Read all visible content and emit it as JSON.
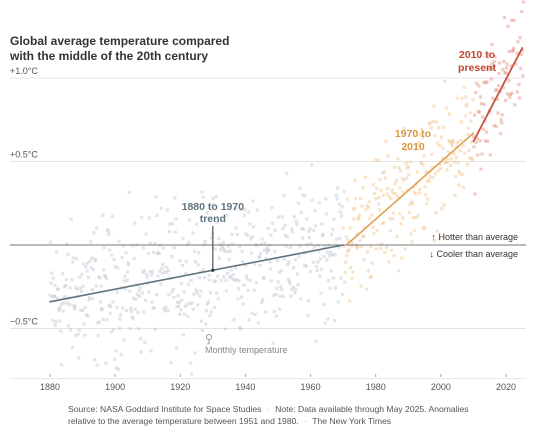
{
  "title_lines": [
    "Global average temperature compared",
    "with the middle of the 20th century"
  ],
  "source": {
    "line1": "Source: NASA Goddard Institute for Space Studies",
    "note_line1": "Note: Data available through May 2025. Anomalies",
    "note_line2": "relative to the average temperature between 1951 and 1980.",
    "credit": "The New York Times",
    "separator": "·"
  },
  "chart_data": {
    "type": "scatter",
    "xlim": [
      1875,
      2026
    ],
    "ylim": [
      -0.8,
      1.25
    ],
    "x_ticks": [
      1880,
      1900,
      1920,
      1940,
      1960,
      1980,
      2000,
      2020
    ],
    "y_ticks": [
      {
        "value": 1.0,
        "label": "+1.0°C"
      },
      {
        "value": 0.5,
        "label": "+0.5°C"
      },
      {
        "value": -0.5,
        "label": "−0.5°C"
      }
    ],
    "baseline": 0,
    "hotter_label": "↑ Hotter than average",
    "cooler_label": "↓ Cooler than average",
    "monthly_label": "Monthly temperature",
    "trends": [
      {
        "label_lines": [
          "1880 to 1970",
          "trend"
        ],
        "x": [
          1880,
          1970
        ],
        "y": [
          -0.34,
          0.0
        ],
        "color": "#607480",
        "annot_x": 1930
      },
      {
        "label_lines": [
          "1970 to",
          "2010"
        ],
        "x": [
          1971,
          2010
        ],
        "y": [
          0.0,
          0.67
        ],
        "color": "#e0a050"
      },
      {
        "label_lines": [
          "2010 to",
          "present"
        ],
        "x": [
          2010,
          2025
        ],
        "y": [
          0.62,
          1.18
        ],
        "color": "#c8553d"
      }
    ],
    "scatter_colors": {
      "early": "#bcc6d0",
      "mid": "#f2c08a",
      "late": "#e08a7a"
    }
  }
}
